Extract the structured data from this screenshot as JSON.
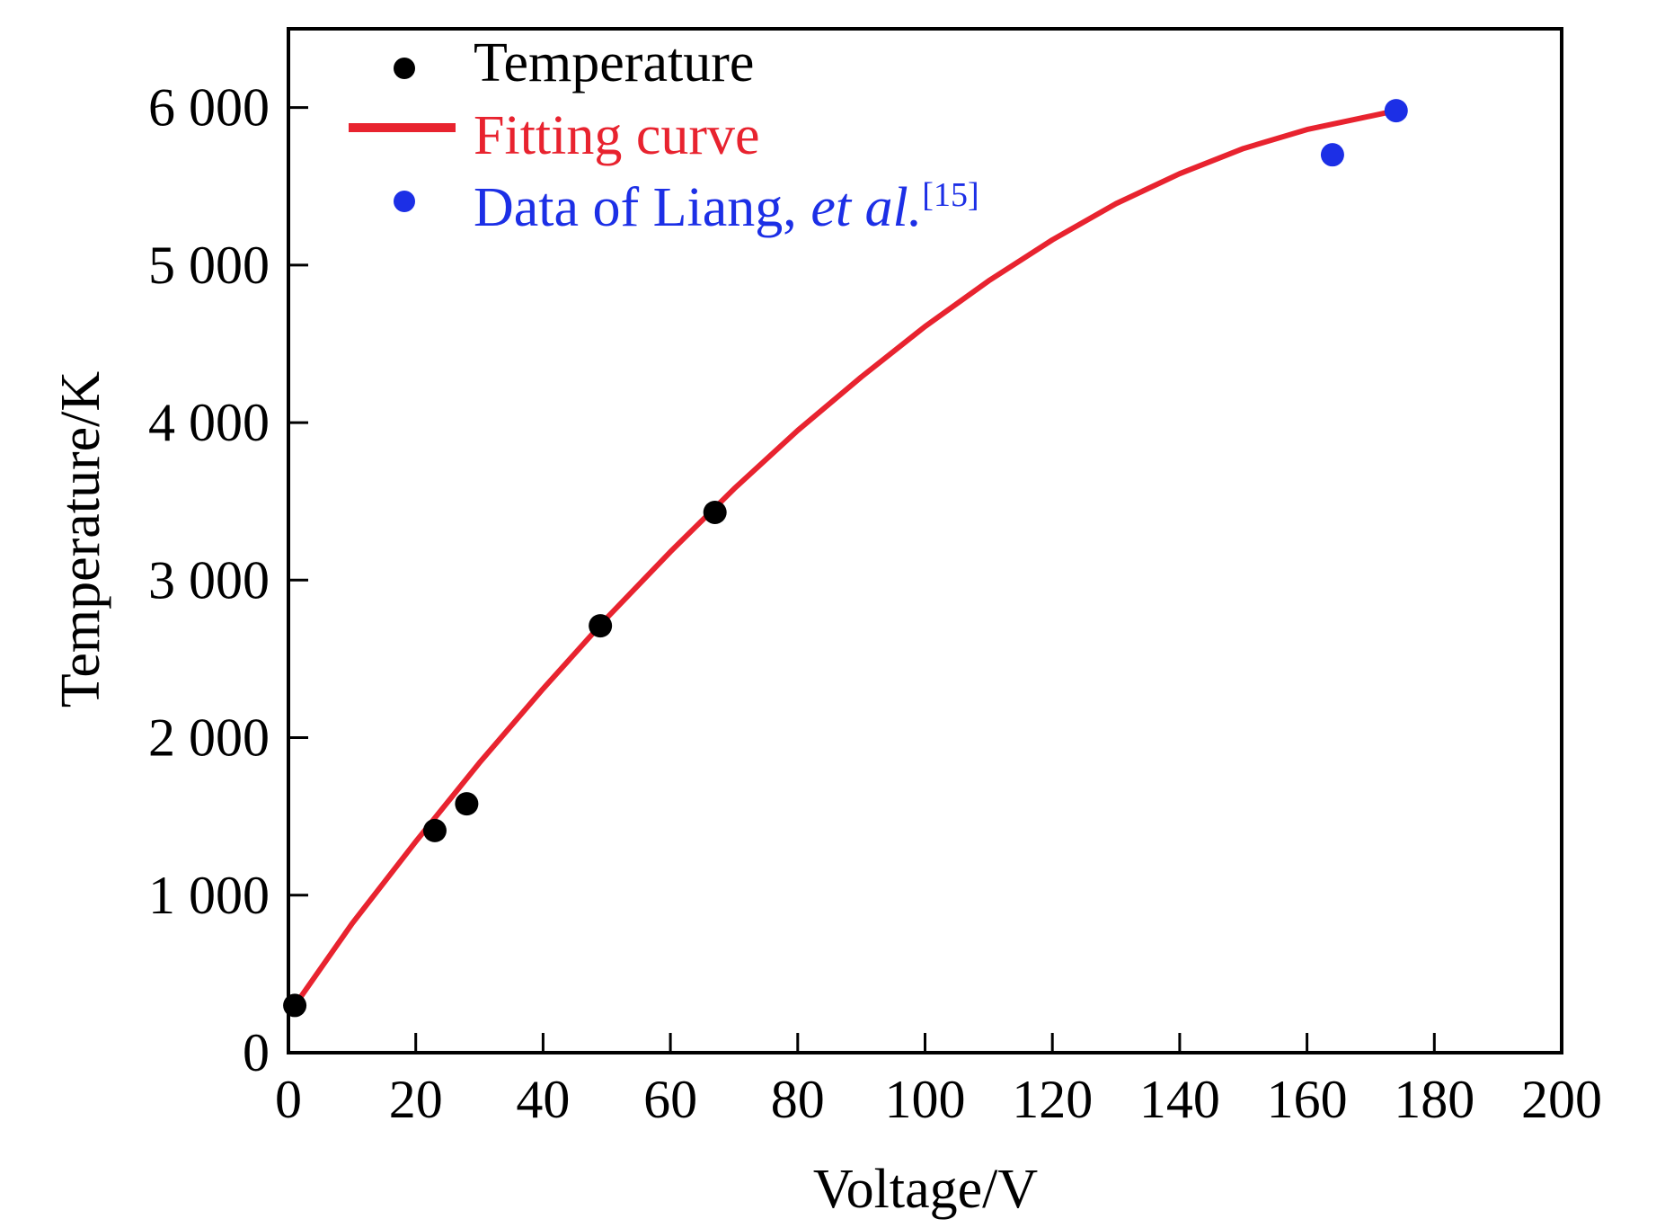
{
  "chart_data": {
    "type": "scatter",
    "xlabel": "Voltage/V",
    "ylabel": "Temperature/K",
    "xlim": [
      0,
      200
    ],
    "ylim": [
      0,
      6500
    ],
    "xticks": [
      0,
      20,
      40,
      60,
      80,
      100,
      120,
      140,
      160,
      180,
      200
    ],
    "xtick_labels": [
      "0",
      "20",
      "40",
      "60",
      "80",
      "100",
      "120",
      "140",
      "160",
      "180",
      "200"
    ],
    "yticks": [
      0,
      1000,
      2000,
      3000,
      4000,
      5000,
      6000
    ],
    "ytick_labels": [
      "0",
      "1 000",
      "2 000",
      "3 000",
      "4 000",
      "5 000",
      "6 000"
    ],
    "grid": false,
    "legend_position": "top-left",
    "legend": {
      "temperature": "Temperature",
      "fitting": "Fitting curve",
      "liang_prefix": "Data of Liang, ",
      "liang_italic": "et al.",
      "liang_ref": "[15]"
    },
    "series": [
      {
        "name": "Temperature",
        "kind": "scatter",
        "color": "#000000",
        "points": [
          [
            1,
            300
          ],
          [
            23,
            1410
          ],
          [
            28,
            1580
          ],
          [
            49,
            2710
          ],
          [
            67,
            3430
          ]
        ]
      },
      {
        "name": "Fitting curve",
        "kind": "line",
        "color": "#e8232f",
        "points": [
          [
            1,
            300
          ],
          [
            10,
            820
          ],
          [
            20,
            1340
          ],
          [
            30,
            1840
          ],
          [
            40,
            2310
          ],
          [
            50,
            2760
          ],
          [
            60,
            3180
          ],
          [
            70,
            3580
          ],
          [
            80,
            3950
          ],
          [
            90,
            4290
          ],
          [
            100,
            4610
          ],
          [
            110,
            4900
          ],
          [
            120,
            5160
          ],
          [
            130,
            5390
          ],
          [
            140,
            5580
          ],
          [
            150,
            5740
          ],
          [
            160,
            5860
          ],
          [
            174,
            5980
          ]
        ]
      },
      {
        "name": "Data of Liang, et al.[15]",
        "kind": "scatter",
        "color": "#1c2fe6",
        "points": [
          [
            164,
            5700
          ],
          [
            174,
            5980
          ]
        ]
      }
    ]
  }
}
